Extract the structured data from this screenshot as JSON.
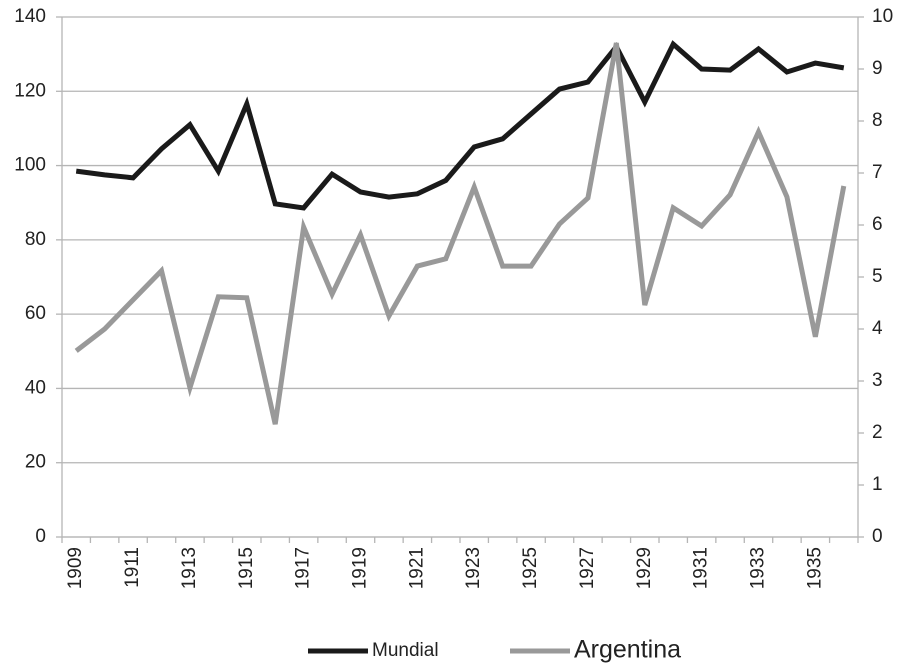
{
  "chart_data": {
    "type": "line",
    "categories": [
      "1909",
      null,
      "1911",
      null,
      "1913",
      null,
      "1915",
      null,
      "1917",
      null,
      "1919",
      null,
      "1921",
      null,
      "1923",
      null,
      "1925",
      null,
      "1927",
      null,
      "1929",
      null,
      "1931",
      null,
      "1933",
      null,
      "1935",
      null
    ],
    "series": [
      {
        "name": "Mundial",
        "color": "#1a1a1a",
        "axis": "y",
        "values": [
          98.5,
          97.5,
          96.7,
          104.5,
          111,
          98.5,
          116.6,
          89.7,
          88.6,
          97.7,
          92.9,
          91.5,
          92.4,
          96,
          105,
          107.2,
          113.9,
          120.6,
          122.5,
          132,
          117.1,
          132.7,
          126,
          125.7,
          131.4,
          125.2,
          127.6,
          126.3
        ]
      },
      {
        "name": "Argentina",
        "color": "#999999",
        "axis": "y2",
        "values": [
          3.58,
          4.0,
          4.56,
          5.12,
          2.87,
          4.62,
          4.6,
          2.17,
          5.96,
          4.67,
          5.81,
          4.25,
          5.21,
          5.35,
          6.73,
          5.21,
          5.21,
          6.02,
          6.52,
          9.5,
          4.46,
          6.33,
          5.98,
          6.58,
          7.79,
          6.54,
          3.85,
          6.75
        ]
      }
    ],
    "ylim": [
      0,
      140
    ],
    "yticks": [
      0,
      20,
      40,
      60,
      80,
      100,
      120,
      140
    ],
    "y2lim": [
      0,
      10
    ],
    "y2ticks": [
      0,
      1,
      2,
      3,
      4,
      5,
      6,
      7,
      8,
      9,
      10
    ],
    "grid": true,
    "legend": "bottom"
  }
}
